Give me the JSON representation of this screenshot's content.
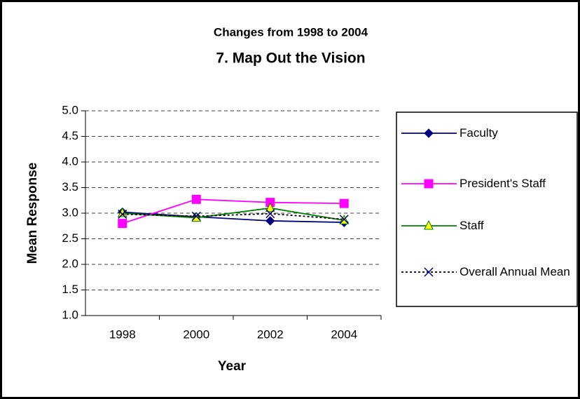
{
  "chart_data": {
    "type": "line",
    "title": "Changes from 1998 to 2004",
    "subtitle": "7.  Map Out the Vision",
    "x_label": "Year",
    "y_label": "Mean Response",
    "categories": [
      "1998",
      "2000",
      "2002",
      "2004"
    ],
    "ylim": [
      1.0,
      5.0
    ],
    "yticks": [
      {
        "value": 1.0,
        "label": "1.0"
      },
      {
        "value": 1.5,
        "label": "1.5"
      },
      {
        "value": 2.0,
        "label": "2.0"
      },
      {
        "value": 2.5,
        "label": "2.5"
      },
      {
        "value": 3.0,
        "label": "3.0"
      },
      {
        "value": 3.5,
        "label": "3.5"
      },
      {
        "value": 4.0,
        "label": "4.0"
      },
      {
        "value": 4.5,
        "label": "4.5"
      },
      {
        "value": 5.0,
        "label": "5.0"
      }
    ],
    "grid": true,
    "legend": "right",
    "series": [
      {
        "name": "Faculty",
        "color": "#000080",
        "marker": "diamond",
        "marker_color": "#000080",
        "marker_fill": "#000080",
        "line_style": "solid",
        "values": [
          3.02,
          2.93,
          2.85,
          2.82
        ]
      },
      {
        "name": "President's Staff",
        "color": "#ff00ff",
        "marker": "square",
        "marker_color": "#ff00ff",
        "marker_fill": "#ff00ff",
        "line_style": "solid",
        "values": [
          2.8,
          3.27,
          3.21,
          3.19
        ]
      },
      {
        "name": "Staff",
        "color": "#008000",
        "marker": "triangle",
        "marker_color": "#008000",
        "marker_fill": "#ffff00",
        "line_style": "solid",
        "values": [
          3.0,
          2.91,
          3.1,
          2.86
        ]
      },
      {
        "name": "Overall Annual Mean",
        "color": "#000000",
        "marker": "x",
        "marker_color": "#000080",
        "marker_fill": "none",
        "line_style": "dotted",
        "values": [
          2.98,
          2.94,
          2.99,
          2.88
        ]
      }
    ]
  }
}
